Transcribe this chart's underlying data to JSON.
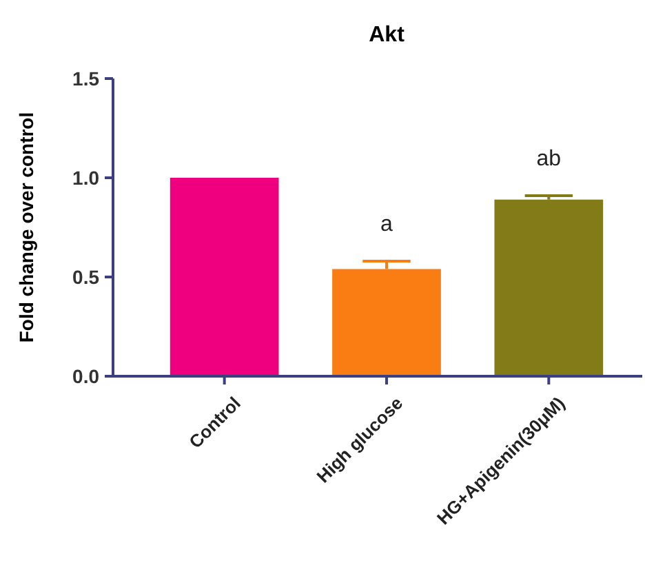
{
  "chart_data": {
    "type": "bar",
    "title": "Akt",
    "ylabel": "Fold change over control",
    "categories": [
      "Control",
      "High glucose",
      "HG+Apigenin(30μM)"
    ],
    "values": [
      1.0,
      0.54,
      0.89
    ],
    "colors": [
      "#ee007f",
      "#f97d12",
      "#827b18"
    ],
    "errors": [
      null,
      [
        0.54,
        0.58
      ],
      [
        0.89,
        0.91
      ]
    ],
    "ylim": [
      0,
      1.5
    ],
    "yticks": [
      {
        "value": 0,
        "label": "0.0"
      },
      {
        "value": 0.5,
        "label": "0.5"
      },
      {
        "value": 1,
        "label": "1.0"
      },
      {
        "value": 1.5,
        "label": "1.5"
      }
    ],
    "annotations": [
      {
        "text": "a",
        "x": "High glucose",
        "y": 0.58
      },
      {
        "text": "ab",
        "x": "HG+Apigenin(30μM)",
        "y": 0.91
      }
    ]
  }
}
